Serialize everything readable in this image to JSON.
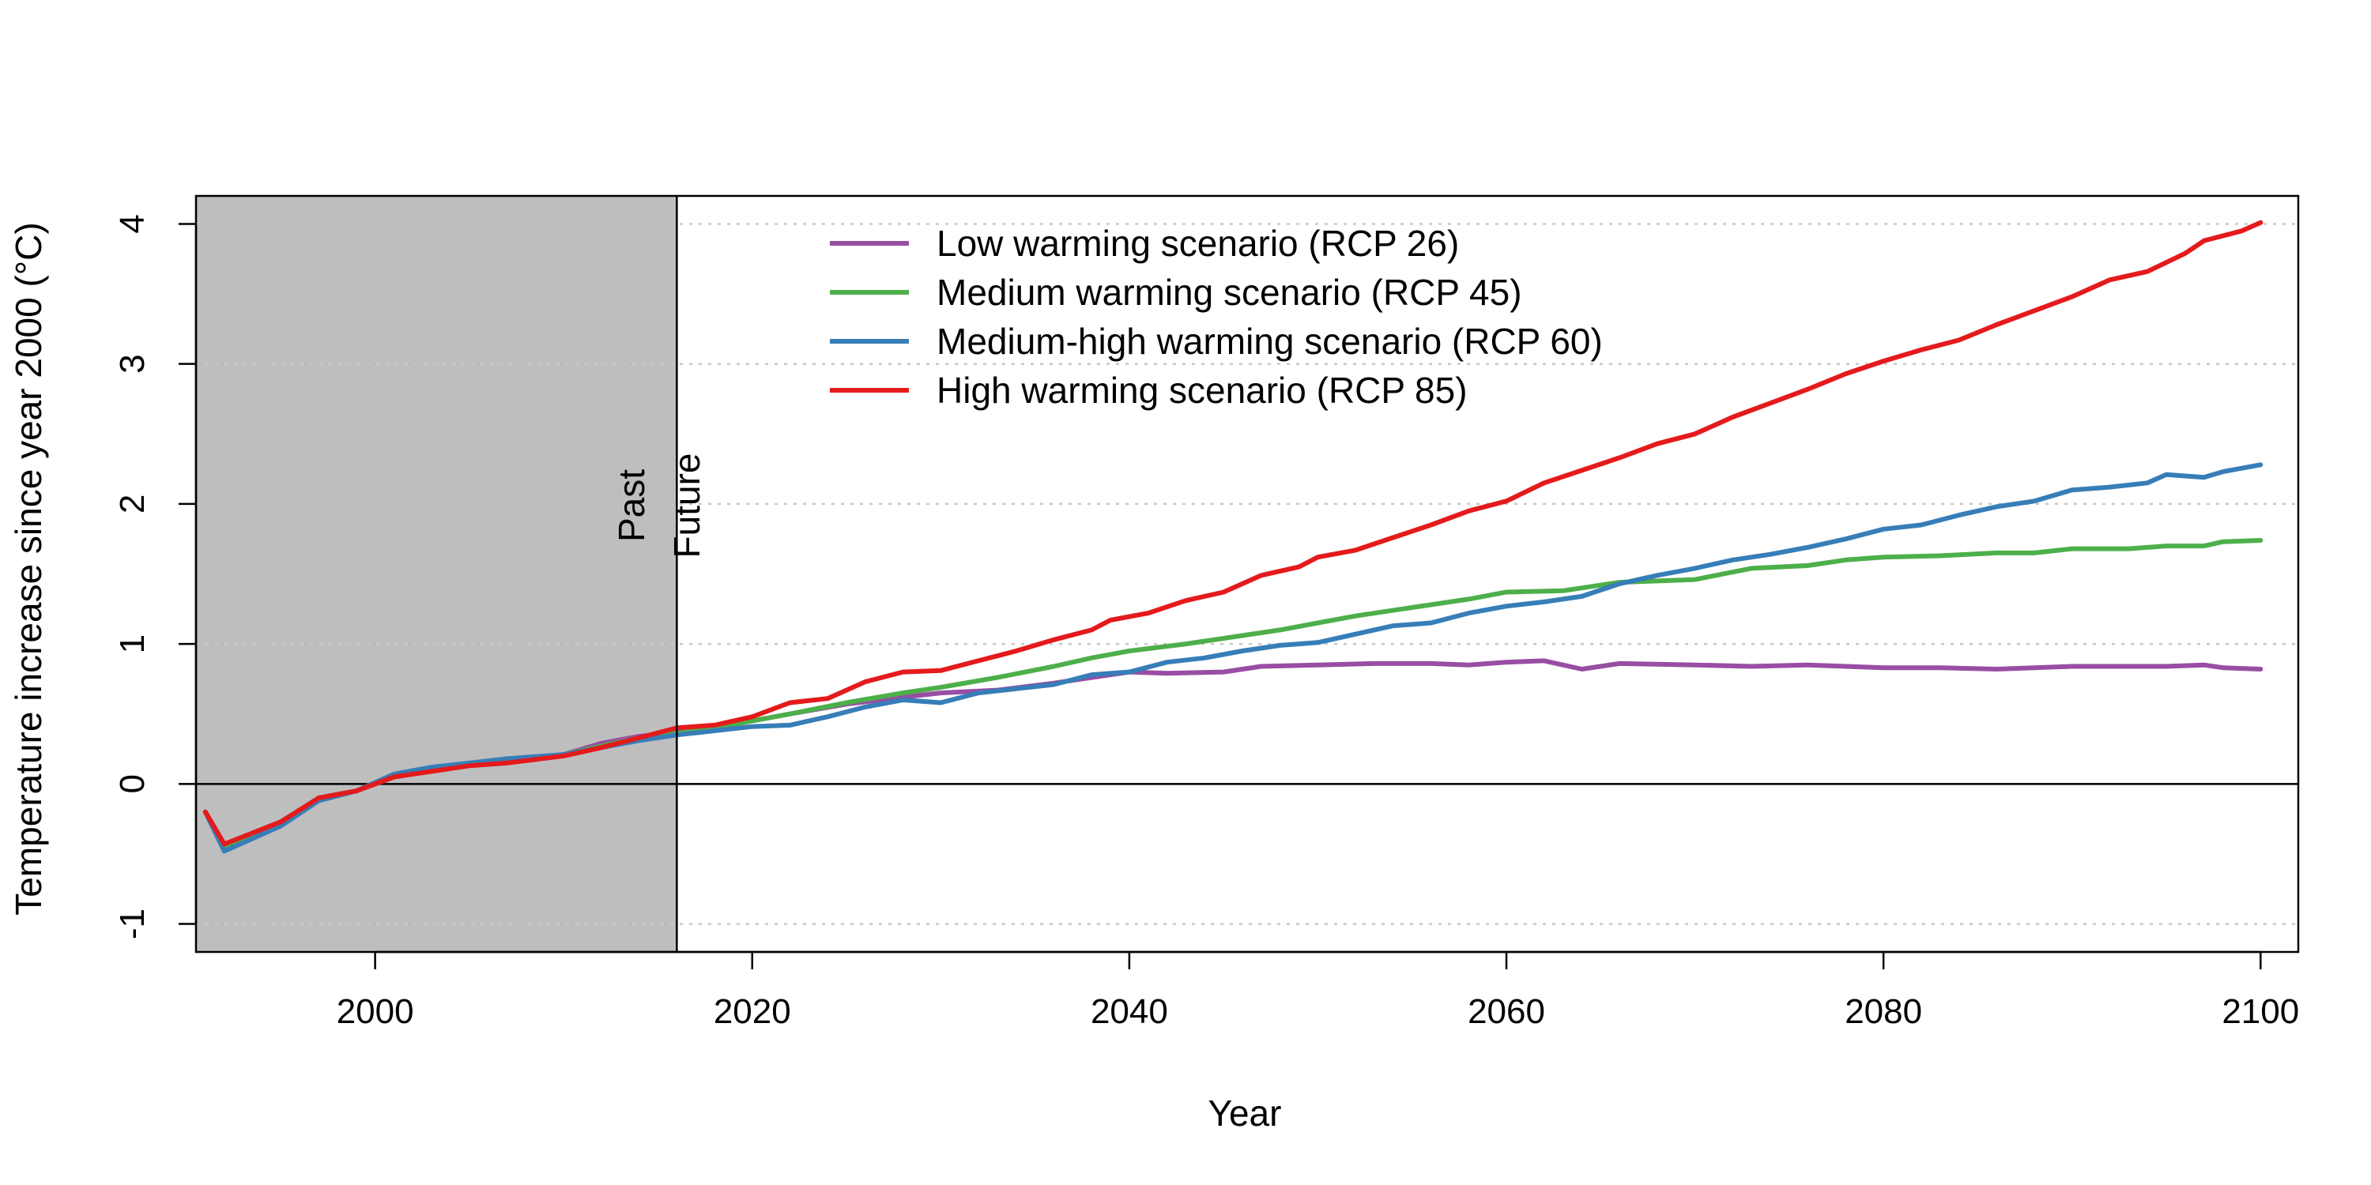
{
  "chart_data": {
    "type": "line",
    "title": "",
    "xlabel": "Year",
    "ylabel": "Temperature increase since year 2000 (°C)",
    "xlim": [
      1990.5,
      2102
    ],
    "ylim": [
      -1.2,
      4.2
    ],
    "xticks": [
      "2000",
      "2020",
      "2040",
      "2060",
      "2080",
      "2100"
    ],
    "yticks": [
      "-1",
      "0",
      "1",
      "2",
      "3",
      "4"
    ],
    "grid": "horizontal dotted",
    "reference_line_y": 0,
    "shaded_region": {
      "from": 1990.5,
      "to": 2016
    },
    "divider_x": 2016,
    "annotations": {
      "past": "Past",
      "future": "Future"
    },
    "legend_position": "top",
    "series": [
      {
        "name": "Low warming scenario (RCP 26)",
        "color": "#984EA3",
        "points": [
          [
            1991,
            -0.2
          ],
          [
            1992,
            -0.45
          ],
          [
            1995,
            -0.28
          ],
          [
            1997,
            -0.1
          ],
          [
            1999,
            -0.05
          ],
          [
            2001,
            0.05
          ],
          [
            2003,
            0.1
          ],
          [
            2005,
            0.14
          ],
          [
            2007,
            0.17
          ],
          [
            2010,
            0.21
          ],
          [
            2012,
            0.29
          ],
          [
            2014,
            0.34
          ],
          [
            2016,
            0.37
          ],
          [
            2018,
            0.4
          ],
          [
            2020,
            0.45
          ],
          [
            2022,
            0.5
          ],
          [
            2025,
            0.57
          ],
          [
            2028,
            0.62
          ],
          [
            2030,
            0.65
          ],
          [
            2033,
            0.67
          ],
          [
            2036,
            0.72
          ],
          [
            2038,
            0.76
          ],
          [
            2040,
            0.8
          ],
          [
            2042,
            0.79
          ],
          [
            2045,
            0.8
          ],
          [
            2047,
            0.84
          ],
          [
            2050,
            0.85
          ],
          [
            2053,
            0.86
          ],
          [
            2056,
            0.86
          ],
          [
            2058,
            0.85
          ],
          [
            2060,
            0.87
          ],
          [
            2062,
            0.88
          ],
          [
            2064,
            0.82
          ],
          [
            2066,
            0.86
          ],
          [
            2070,
            0.85
          ],
          [
            2073,
            0.84
          ],
          [
            2076,
            0.85
          ],
          [
            2080,
            0.83
          ],
          [
            2083,
            0.83
          ],
          [
            2086,
            0.82
          ],
          [
            2090,
            0.84
          ],
          [
            2095,
            0.84
          ],
          [
            2097,
            0.85
          ],
          [
            2098,
            0.83
          ],
          [
            2100,
            0.82
          ]
        ]
      },
      {
        "name": "Medium warming scenario (RCP 45)",
        "color": "#4DAF4A",
        "points": [
          [
            1991,
            -0.2
          ],
          [
            1992,
            -0.45
          ],
          [
            1995,
            -0.28
          ],
          [
            1997,
            -0.1
          ],
          [
            1999,
            -0.05
          ],
          [
            2001,
            0.05
          ],
          [
            2003,
            0.1
          ],
          [
            2005,
            0.14
          ],
          [
            2007,
            0.17
          ],
          [
            2010,
            0.21
          ],
          [
            2012,
            0.27
          ],
          [
            2014,
            0.33
          ],
          [
            2016,
            0.36
          ],
          [
            2018,
            0.4
          ],
          [
            2020,
            0.45
          ],
          [
            2022,
            0.5
          ],
          [
            2025,
            0.58
          ],
          [
            2028,
            0.65
          ],
          [
            2030,
            0.69
          ],
          [
            2033,
            0.76
          ],
          [
            2036,
            0.84
          ],
          [
            2038,
            0.9
          ],
          [
            2040,
            0.95
          ],
          [
            2043,
            1.0
          ],
          [
            2046,
            1.06
          ],
          [
            2048,
            1.1
          ],
          [
            2050,
            1.15
          ],
          [
            2052,
            1.2
          ],
          [
            2055,
            1.26
          ],
          [
            2058,
            1.32
          ],
          [
            2060,
            1.37
          ],
          [
            2063,
            1.38
          ],
          [
            2066,
            1.44
          ],
          [
            2070,
            1.46
          ],
          [
            2073,
            1.54
          ],
          [
            2076,
            1.56
          ],
          [
            2078,
            1.6
          ],
          [
            2080,
            1.62
          ],
          [
            2083,
            1.63
          ],
          [
            2086,
            1.65
          ],
          [
            2088,
            1.65
          ],
          [
            2090,
            1.68
          ],
          [
            2093,
            1.68
          ],
          [
            2095,
            1.7
          ],
          [
            2097,
            1.7
          ],
          [
            2098,
            1.73
          ],
          [
            2100,
            1.74
          ]
        ]
      },
      {
        "name": "Medium-high warming scenario (RCP 60)",
        "color": "#377EB8",
        "points": [
          [
            1991,
            -0.2
          ],
          [
            1992,
            -0.48
          ],
          [
            1995,
            -0.3
          ],
          [
            1997,
            -0.12
          ],
          [
            1999,
            -0.05
          ],
          [
            2001,
            0.07
          ],
          [
            2003,
            0.12
          ],
          [
            2005,
            0.15
          ],
          [
            2007,
            0.18
          ],
          [
            2010,
            0.21
          ],
          [
            2012,
            0.26
          ],
          [
            2014,
            0.31
          ],
          [
            2016,
            0.35
          ],
          [
            2018,
            0.38
          ],
          [
            2020,
            0.41
          ],
          [
            2022,
            0.42
          ],
          [
            2024,
            0.48
          ],
          [
            2026,
            0.55
          ],
          [
            2028,
            0.6
          ],
          [
            2030,
            0.58
          ],
          [
            2032,
            0.65
          ],
          [
            2034,
            0.68
          ],
          [
            2036,
            0.71
          ],
          [
            2038,
            0.78
          ],
          [
            2040,
            0.8
          ],
          [
            2042,
            0.87
          ],
          [
            2044,
            0.9
          ],
          [
            2046,
            0.95
          ],
          [
            2048,
            0.99
          ],
          [
            2050,
            1.01
          ],
          [
            2052,
            1.07
          ],
          [
            2054,
            1.13
          ],
          [
            2056,
            1.15
          ],
          [
            2058,
            1.22
          ],
          [
            2060,
            1.27
          ],
          [
            2062,
            1.3
          ],
          [
            2064,
            1.34
          ],
          [
            2066,
            1.43
          ],
          [
            2068,
            1.49
          ],
          [
            2070,
            1.54
          ],
          [
            2072,
            1.6
          ],
          [
            2074,
            1.64
          ],
          [
            2076,
            1.69
          ],
          [
            2078,
            1.75
          ],
          [
            2080,
            1.82
          ],
          [
            2082,
            1.85
          ],
          [
            2084,
            1.92
          ],
          [
            2086,
            1.98
          ],
          [
            2088,
            2.02
          ],
          [
            2090,
            2.1
          ],
          [
            2092,
            2.12
          ],
          [
            2094,
            2.15
          ],
          [
            2095,
            2.21
          ],
          [
            2097,
            2.19
          ],
          [
            2098,
            2.23
          ],
          [
            2100,
            2.28
          ]
        ]
      },
      {
        "name": "High warming scenario (RCP 85)",
        "color": "#E41A1C",
        "points": [
          [
            1991,
            -0.2
          ],
          [
            1992,
            -0.43
          ],
          [
            1995,
            -0.27
          ],
          [
            1997,
            -0.1
          ],
          [
            1999,
            -0.05
          ],
          [
            2001,
            0.05
          ],
          [
            2003,
            0.09
          ],
          [
            2005,
            0.13
          ],
          [
            2007,
            0.15
          ],
          [
            2010,
            0.2
          ],
          [
            2012,
            0.26
          ],
          [
            2014,
            0.33
          ],
          [
            2016,
            0.4
          ],
          [
            2018,
            0.42
          ],
          [
            2020,
            0.48
          ],
          [
            2022,
            0.58
          ],
          [
            2024,
            0.61
          ],
          [
            2026,
            0.73
          ],
          [
            2028,
            0.8
          ],
          [
            2030,
            0.81
          ],
          [
            2032,
            0.88
          ],
          [
            2034,
            0.95
          ],
          [
            2036,
            1.03
          ],
          [
            2038,
            1.1
          ],
          [
            2039,
            1.17
          ],
          [
            2041,
            1.22
          ],
          [
            2043,
            1.31
          ],
          [
            2045,
            1.37
          ],
          [
            2047,
            1.49
          ],
          [
            2049,
            1.55
          ],
          [
            2050,
            1.62
          ],
          [
            2052,
            1.67
          ],
          [
            2054,
            1.76
          ],
          [
            2056,
            1.85
          ],
          [
            2058,
            1.95
          ],
          [
            2060,
            2.02
          ],
          [
            2062,
            2.15
          ],
          [
            2064,
            2.24
          ],
          [
            2066,
            2.33
          ],
          [
            2068,
            2.43
          ],
          [
            2070,
            2.5
          ],
          [
            2072,
            2.62
          ],
          [
            2074,
            2.72
          ],
          [
            2076,
            2.82
          ],
          [
            2078,
            2.93
          ],
          [
            2080,
            3.02
          ],
          [
            2082,
            3.1
          ],
          [
            2084,
            3.17
          ],
          [
            2086,
            3.28
          ],
          [
            2088,
            3.38
          ],
          [
            2090,
            3.48
          ],
          [
            2092,
            3.6
          ],
          [
            2094,
            3.66
          ],
          [
            2096,
            3.79
          ],
          [
            2097,
            3.88
          ],
          [
            2099,
            3.95
          ],
          [
            2100,
            4.01
          ]
        ]
      }
    ]
  }
}
